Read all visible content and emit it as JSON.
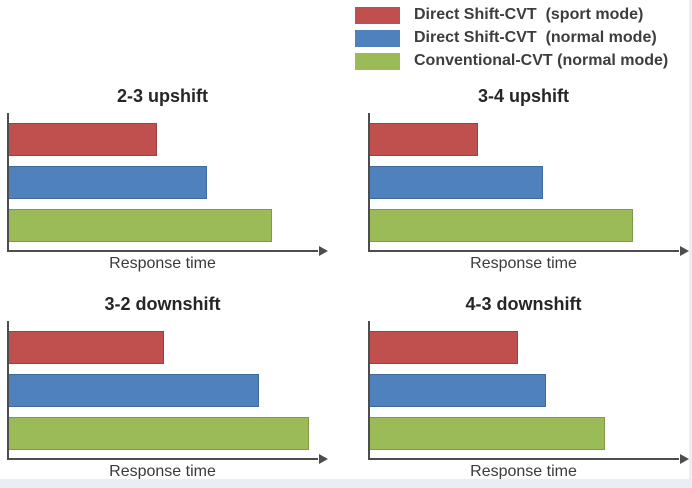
{
  "legend": {
    "items": [
      {
        "label": "Direct Shift-CVT  (sport mode)",
        "color": "#c0504d",
        "icon": "red-swatch"
      },
      {
        "label": "Direct Shift-CVT  (normal mode)",
        "color": "#4f81bd",
        "icon": "blue-swatch"
      },
      {
        "label": "Conventional-CVT (normal mode)",
        "color": "#9bbb59",
        "icon": "green-swatch"
      }
    ],
    "position": "top-right"
  },
  "chart_data": [
    {
      "type": "bar",
      "orientation": "horizontal",
      "title": "2-3 upshift",
      "xlabel": "Response time",
      "axis_note": "no numeric ticks; values are fractions of x-axis length, arrow on x-axis",
      "series": [
        {
          "name": "Direct Shift-CVT (sport mode)",
          "color": "#c0504d",
          "value": 0.48
        },
        {
          "name": "Direct Shift-CVT (normal mode)",
          "color": "#4f81bd",
          "value": 0.64
        },
        {
          "name": "Conventional-CVT (normal mode)",
          "color": "#9bbb59",
          "value": 0.85
        }
      ]
    },
    {
      "type": "bar",
      "orientation": "horizontal",
      "title": "3-4 upshift",
      "xlabel": "Response time",
      "axis_note": "no numeric ticks; values are fractions of x-axis length, arrow on x-axis",
      "series": [
        {
          "name": "Direct Shift-CVT (sport mode)",
          "color": "#c0504d",
          "value": 0.35
        },
        {
          "name": "Direct Shift-CVT (normal mode)",
          "color": "#4f81bd",
          "value": 0.56
        },
        {
          "name": "Conventional-CVT (normal mode)",
          "color": "#9bbb59",
          "value": 0.85
        }
      ]
    },
    {
      "type": "bar",
      "orientation": "horizontal",
      "title": "3-2 downshift",
      "xlabel": "Response time",
      "axis_note": "no numeric ticks; values are fractions of x-axis length, arrow on x-axis",
      "series": [
        {
          "name": "Direct Shift-CVT (sport mode)",
          "color": "#c0504d",
          "value": 0.5
        },
        {
          "name": "Direct Shift-CVT (normal mode)",
          "color": "#4f81bd",
          "value": 0.81
        },
        {
          "name": "Conventional-CVT (normal mode)",
          "color": "#9bbb59",
          "value": 0.97
        }
      ]
    },
    {
      "type": "bar",
      "orientation": "horizontal",
      "title": "4-3 downshift",
      "xlabel": "Response time",
      "axis_note": "no numeric ticks; values are fractions of x-axis length, arrow on x-axis",
      "series": [
        {
          "name": "Direct Shift-CVT (sport mode)",
          "color": "#c0504d",
          "value": 0.48
        },
        {
          "name": "Direct Shift-CVT (normal mode)",
          "color": "#4f81bd",
          "value": 0.57
        },
        {
          "name": "Conventional-CVT (normal mode)",
          "color": "#9bbb59",
          "value": 0.76
        }
      ]
    }
  ]
}
